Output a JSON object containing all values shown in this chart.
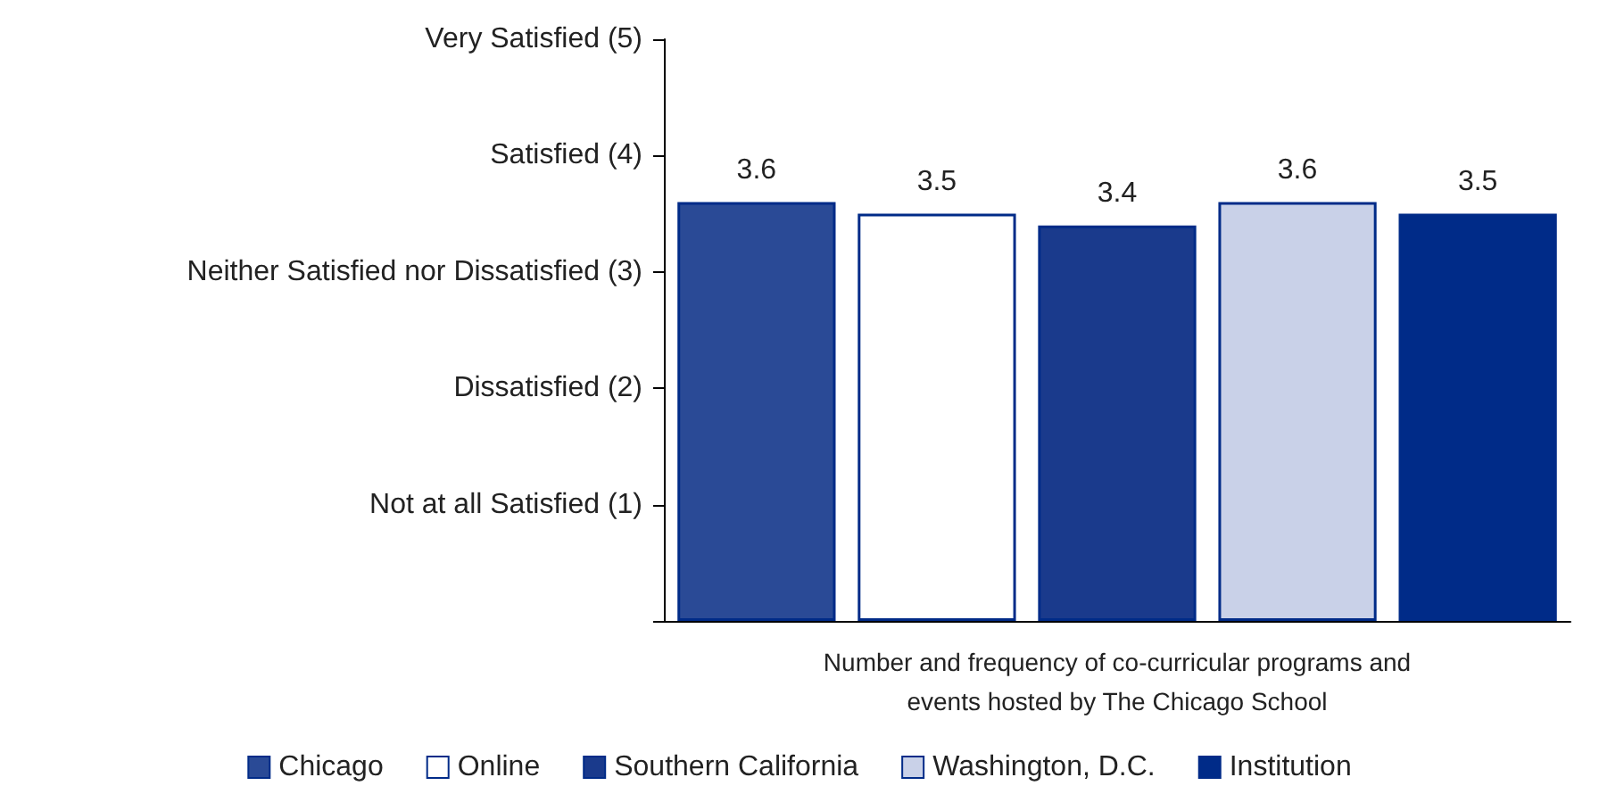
{
  "chart_data": {
    "type": "bar",
    "categories": [
      "Number and frequency of co-curricular programs and events hosted by The Chicago School"
    ],
    "series": [
      {
        "name": "Chicago",
        "color": "#2a4a96",
        "values": [
          3.6
        ]
      },
      {
        "name": "Online",
        "color": "#ffffff",
        "values": [
          3.5
        ]
      },
      {
        "name": "Southern California",
        "color": "#1a3a8c",
        "values": [
          3.4
        ]
      },
      {
        "name": "Washington, D.C.",
        "color": "#c9d1e8",
        "values": [
          3.6
        ]
      },
      {
        "name": "Institution",
        "color": "#002b88",
        "values": [
          3.5
        ]
      }
    ],
    "ylim": [
      0,
      5
    ],
    "yticks": [
      {
        "value": 0,
        "label": null
      },
      {
        "value": 1,
        "label": "Not at all Satisfied (1)"
      },
      {
        "value": 2,
        "label": "Dissatisfied (2)"
      },
      {
        "value": 3,
        "label": "Neither Satisfied nor Dissatisfied (3)"
      },
      {
        "value": 4,
        "label": "Satisfied (4)"
      },
      {
        "value": 5,
        "label": "Very Satisfied (5)"
      }
    ],
    "grid": false,
    "legend": "bottom",
    "data_labels": true
  }
}
